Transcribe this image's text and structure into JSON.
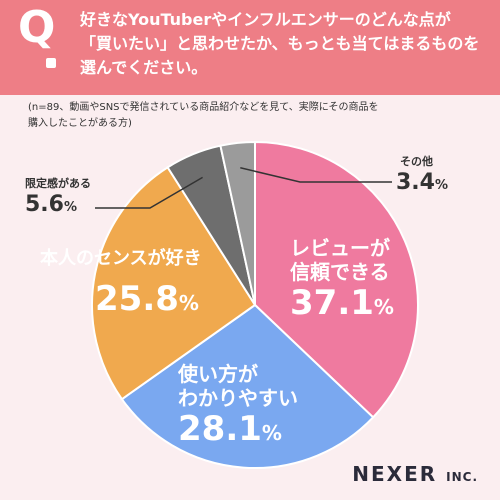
{
  "question": {
    "mark": "Q",
    "line1": "好きなYouTuberやインフルエンサーのどんな点が",
    "line2": "「買いたい」と思わせたか、もっとも当てはまるものを",
    "line3": "選んでください。"
  },
  "note": {
    "line1": "(n=89、動画やSNSで発信されている商品紹介などを見て、実際にその商品を",
    "line2": "購入したことがある方)"
  },
  "brand": {
    "name": "NEXER",
    "suffix": "INC."
  },
  "colors": {
    "header": "#ee7e86",
    "review": "#ef7a9f",
    "usability": "#7aa8f0",
    "sense": "#f0a94e",
    "limited": "#6e6e6e",
    "other": "#9b9b9b"
  },
  "chart_data": {
    "type": "pie",
    "slices": [
      {
        "label": "レビューが信頼できる",
        "line1": "レビューが",
        "line2": "信頼できる",
        "value": 37.1,
        "display": "37.1",
        "color": "#ef7a9f"
      },
      {
        "label": "使い方がわかりやすい",
        "line1": "使い方が",
        "line2": "わかりやすい",
        "value": 28.1,
        "display": "28.1",
        "color": "#7aa8f0"
      },
      {
        "label": "本人のセンスが好き",
        "line1": "本人のセンスが好き",
        "line2": "",
        "value": 25.8,
        "display": "25.8",
        "color": "#f0a94e"
      },
      {
        "label": "限定感がある",
        "line1": "限定感がある",
        "line2": "",
        "value": 5.6,
        "display": "5.6",
        "color": "#6e6e6e"
      },
      {
        "label": "その他",
        "line1": "その他",
        "line2": "",
        "value": 3.4,
        "display": "3.4",
        "color": "#9b9b9b"
      }
    ],
    "unit": "%",
    "start_angle": "12 o'clock",
    "direction": "clockwise"
  }
}
